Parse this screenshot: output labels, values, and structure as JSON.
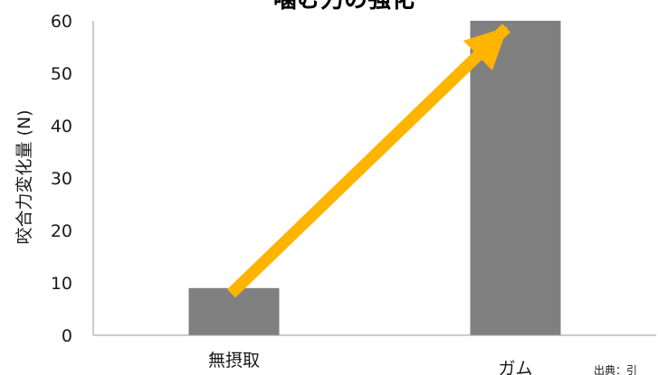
{
  "chart_data": {
    "type": "bar",
    "title": "噛む力の強化",
    "ylabel": "咬合力変化量 (N)",
    "xlabel": "",
    "categories": [
      "無摂取",
      "ガム"
    ],
    "values": [
      9,
      60
    ],
    "ylim": [
      0,
      60
    ],
    "yticks": [
      0,
      10,
      20,
      30,
      40,
      50,
      60
    ],
    "ytick_labels": [
      "0",
      "10",
      "20",
      "30",
      "40",
      "50",
      "60"
    ],
    "grid": false,
    "legend": "none",
    "bar_color": "#808080",
    "axis_color": "#999999",
    "arrow": {
      "from_category": "無摂取",
      "to_category": "ガム",
      "color": "#FFB400"
    },
    "source_note": "出典：引"
  }
}
